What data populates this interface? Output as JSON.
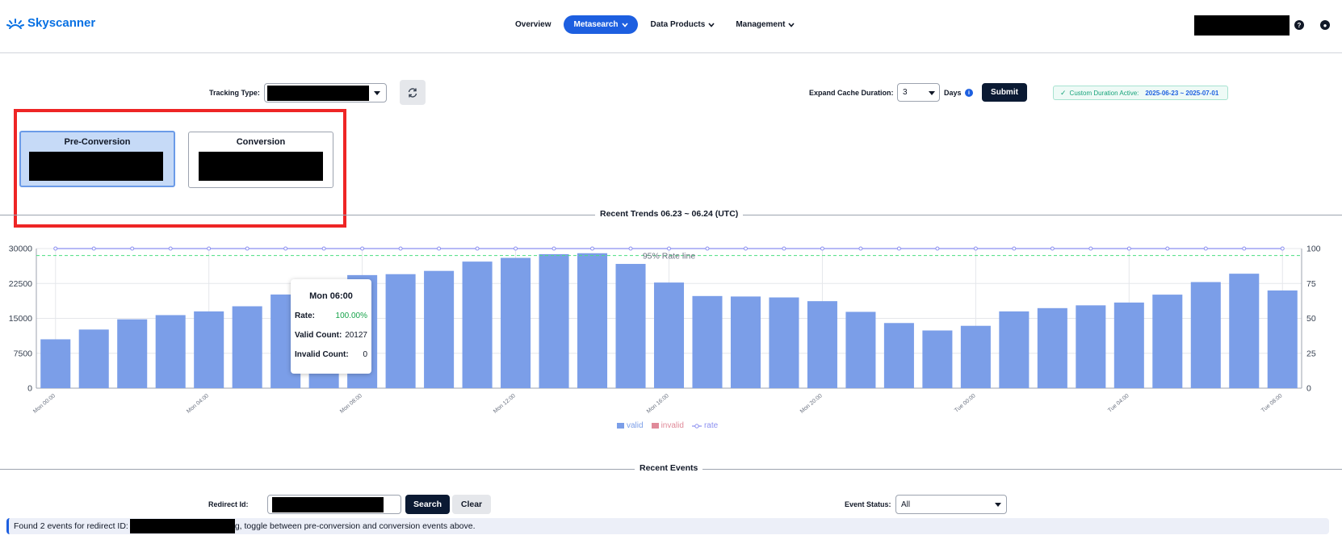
{
  "brand": {
    "name": "Skyscanner"
  },
  "nav": {
    "items": [
      {
        "label": "Overview",
        "dropdown": false,
        "active": false
      },
      {
        "label": "Metasearch",
        "dropdown": true,
        "active": true
      },
      {
        "label": "Data Products",
        "dropdown": true,
        "active": false
      },
      {
        "label": "Management",
        "dropdown": true,
        "active": false
      }
    ]
  },
  "controls": {
    "tracking_type_label": "Tracking Type:",
    "expand_cache_label": "Expand Cache Duration:",
    "cache_days_value": "3",
    "days_label": "Days",
    "submit_label": "Submit",
    "cache_badge_label": "Custom Duration Active:",
    "cache_badge_range": "2025-06-23 ~ 2025-07-01"
  },
  "cards": {
    "pre_conversion": "Pre-Conversion",
    "conversion": "Conversion"
  },
  "trends": {
    "title": "Recent Trends 06.23 ~ 06.24 (UTC)"
  },
  "chart_data": {
    "type": "bar",
    "categories": [
      "Mon 00:00",
      "Mon 01:00",
      "Mon 02:00",
      "Mon 03:00",
      "Mon 04:00",
      "Mon 05:00",
      "Mon 06:00",
      "Mon 07:00",
      "Mon 08:00",
      "Mon 09:00",
      "Mon 10:00",
      "Mon 11:00",
      "Mon 12:00",
      "Mon 13:00",
      "Mon 14:00",
      "Mon 15:00",
      "Mon 16:00",
      "Mon 17:00",
      "Mon 18:00",
      "Mon 19:00",
      "Mon 20:00",
      "Mon 21:00",
      "Mon 22:00",
      "Mon 23:00",
      "Tue 00:00",
      "Tue 01:00",
      "Tue 02:00",
      "Tue 03:00",
      "Tue 04:00",
      "Tue 05:00",
      "Tue 06:00",
      "Tue 07:00",
      "Tue 08:00"
    ],
    "tick_labels": [
      "Mon 00:00",
      "Mon 04:00",
      "Mon 08:00",
      "Mon 12:00",
      "Mon 16:00",
      "Mon 20:00",
      "Tue 00:00",
      "Tue 04:00",
      "Tue 08:00"
    ],
    "series": [
      {
        "name": "valid",
        "color": "#7b9ee8",
        "values": [
          10500,
          12600,
          14800,
          15700,
          16500,
          17600,
          20127,
          21600,
          24300,
          24500,
          25200,
          27200,
          28000,
          28800,
          29000,
          26700,
          22700,
          19800,
          19700,
          19500,
          18700,
          16400,
          14000,
          12400,
          13400,
          16500,
          17200,
          17800,
          18400,
          20100,
          22800,
          24600,
          21000
        ]
      },
      {
        "name": "invalid",
        "color": "#e08a99",
        "values": [
          0,
          0,
          0,
          0,
          0,
          0,
          0,
          0,
          0,
          0,
          0,
          0,
          0,
          0,
          0,
          0,
          0,
          0,
          0,
          0,
          0,
          0,
          0,
          0,
          0,
          0,
          0,
          0,
          0,
          0,
          0,
          0,
          0
        ]
      },
      {
        "name": "rate",
        "color": "#8b8ff0",
        "axis": "right",
        "values": [
          100,
          100,
          100,
          100,
          100,
          100,
          100,
          100,
          100,
          100,
          100,
          100,
          100,
          100,
          100,
          100,
          100,
          100,
          100,
          100,
          100,
          100,
          100,
          100,
          100,
          100,
          100,
          100,
          100,
          100,
          100,
          100,
          100
        ]
      }
    ],
    "y_left": {
      "min": 0,
      "max": 30000,
      "ticks": [
        "0",
        "7500",
        "15000",
        "22500",
        "30000"
      ]
    },
    "y_right": {
      "min": 0,
      "max": 100,
      "ticks": [
        "0",
        "25",
        "50",
        "75",
        "100"
      ]
    },
    "reference_line": {
      "label": "95% Rate line",
      "value": 95,
      "color": "#4ade80"
    },
    "grid": true,
    "legend": "bottom-center"
  },
  "tooltip": {
    "title": "Mon 06:00",
    "rate_label": "Rate:",
    "rate_value": "100.00%",
    "valid_label": "Valid Count:",
    "valid_value": "20127",
    "invalid_label": "Invalid Count:",
    "invalid_value": "0"
  },
  "legend": {
    "valid": "valid",
    "invalid": "invalid",
    "rate": "rate"
  },
  "events": {
    "title": "Recent Events",
    "redirect_id_label": "Redirect Id:",
    "search_label": "Search",
    "clear_label": "Clear",
    "event_status_label": "Event Status:",
    "event_status_value": "All",
    "notice_prefix": "Found 2 events for redirect ID:",
    "notice_suffix": "g, toggle between pre-conversion and conversion events above."
  }
}
